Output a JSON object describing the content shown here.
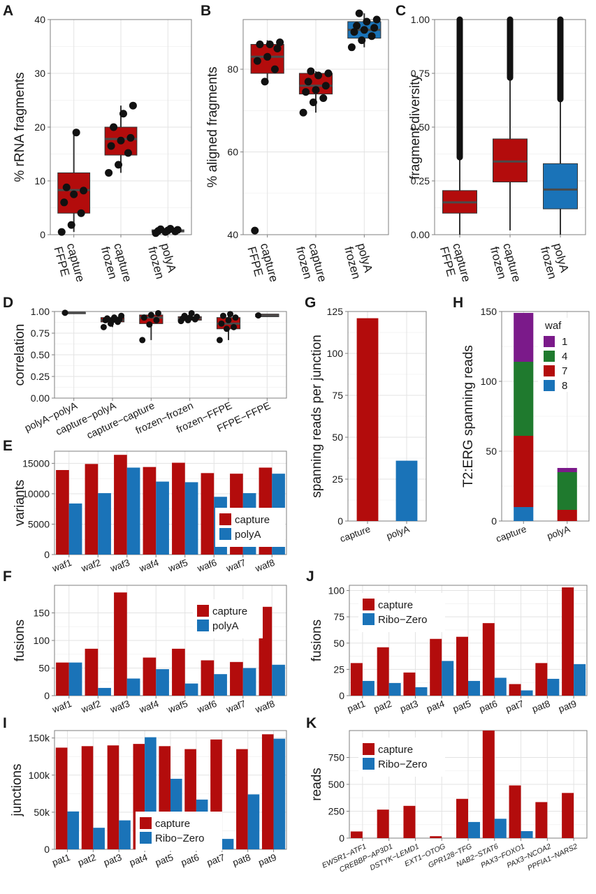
{
  "colors": {
    "capture": "#b30c0c",
    "polyA": "#1a73b8",
    "riboZero": "#1a73b8",
    "waf1": "#7b1a8a",
    "waf4": "#1f7a2e",
    "waf7": "#b30c0c",
    "waf8": "#1a73b8",
    "median": "#4a4a4a",
    "point": "#111111"
  },
  "chart_data": [
    {
      "id": "A",
      "panel_label": "A",
      "type": "box",
      "ylabel": "% rRNA fragments",
      "ylim": [
        0,
        40
      ],
      "yticks": [
        0,
        10,
        20,
        30,
        40
      ],
      "tick_labels": [
        "0",
        "10",
        "20",
        "30",
        "40"
      ],
      "categories": [
        "capture\nFFPE",
        "capture\nfrozen",
        "polyA\nfrozen"
      ],
      "boxes": [
        {
          "color": "capture",
          "q1": 4,
          "median": 8.3,
          "q3": 11.5,
          "whisker_low": 0.5,
          "whisker_high": 19,
          "points": [
            0.5,
            1.8,
            4,
            6,
            7.5,
            8.2,
            8.8,
            19
          ]
        },
        {
          "color": "capture",
          "q1": 14.8,
          "median": 17.8,
          "q3": 20,
          "whisker_low": 11.5,
          "whisker_high": 24,
          "points": [
            11.5,
            13,
            15.2,
            16.5,
            17.5,
            18,
            20,
            22.5,
            24
          ]
        },
        {
          "color": "capture",
          "q1": 0.5,
          "median": 0.7,
          "q3": 0.9,
          "whisker_low": 0.3,
          "whisker_high": 1.1,
          "points": [
            0.3,
            0.5,
            0.6,
            0.7,
            0.8,
            0.9,
            1.0,
            1.1
          ]
        }
      ]
    },
    {
      "id": "B",
      "panel_label": "B",
      "type": "box",
      "ylabel": "% aligned fragments",
      "ylim": [
        40,
        92
      ],
      "yticks": [
        40,
        60,
        80
      ],
      "tick_labels": [
        "40",
        "60",
        "80"
      ],
      "categories": [
        "capture\nFFPE",
        "capture\nfrozen",
        "polyA\nfrozen"
      ],
      "boxes": [
        {
          "color": "capture",
          "q1": 79,
          "median": 83,
          "q3": 86,
          "whisker_low": 76.5,
          "whisker_high": 87,
          "points": [
            41,
            77,
            80,
            82,
            83,
            85,
            86,
            86,
            86.5
          ]
        },
        {
          "color": "capture",
          "q1": 74,
          "median": 76,
          "q3": 79,
          "whisker_low": 69.5,
          "whisker_high": 79.5,
          "points": [
            69.5,
            72,
            73,
            74.5,
            75,
            76,
            77,
            78.5,
            79,
            79.5
          ]
        },
        {
          "color": "polyA",
          "q1": 87.5,
          "median": 89.5,
          "q3": 91.5,
          "whisker_low": 85.3,
          "whisker_high": 93.5,
          "points": [
            85.3,
            87,
            88,
            89,
            89.5,
            90,
            90.5,
            91.5,
            92,
            93.5
          ]
        }
      ]
    },
    {
      "id": "C",
      "panel_label": "C",
      "type": "box",
      "ylabel": "fragment diversity",
      "ylim": [
        0,
        1.0
      ],
      "yticks": [
        0,
        0.25,
        0.5,
        0.75,
        1.0
      ],
      "tick_labels": [
        "0.00",
        "0.25",
        "0.50",
        "0.75",
        "1.00"
      ],
      "categories": [
        "capture\nFFPE",
        "capture\nfrozen",
        "polyA\nfrozen"
      ],
      "boxes": [
        {
          "color": "capture",
          "q1": 0.1,
          "median": 0.15,
          "q3": 0.205,
          "whisker_low": 0.0,
          "whisker_high": 0.36,
          "outliers_from": 0.36,
          "outliers_to": 1.0,
          "points": []
        },
        {
          "color": "capture",
          "q1": 0.245,
          "median": 0.34,
          "q3": 0.445,
          "whisker_low": 0.02,
          "whisker_high": 0.73,
          "outliers_from": 0.73,
          "outliers_to": 1.0,
          "points": []
        },
        {
          "color": "polyA",
          "q1": 0.12,
          "median": 0.21,
          "q3": 0.33,
          "whisker_low": 0.0,
          "whisker_high": 0.63,
          "outliers_from": 0.63,
          "outliers_to": 1.0,
          "points": []
        }
      ]
    },
    {
      "id": "D",
      "panel_label": "D",
      "type": "box",
      "ylabel": "correlation",
      "ylim": [
        0,
        1.0
      ],
      "yticks": [
        0,
        0.25,
        0.5,
        0.75,
        1.0
      ],
      "tick_labels": [
        "0.00",
        "0.25",
        "0.50",
        "0.75",
        "1.00"
      ],
      "categories": [
        "polyA−polyA",
        "capture−polyA",
        "capture−capture",
        "frozen−frozen",
        "frozen−FFPE",
        "FFPE−FFPE"
      ],
      "boxes": [
        {
          "color": "capture",
          "q1": 0.98,
          "median": 0.985,
          "q3": 0.99,
          "whisker_low": 0.98,
          "whisker_high": 0.99,
          "points": [
            0.985
          ]
        },
        {
          "color": "capture",
          "q1": 0.88,
          "median": 0.9,
          "q3": 0.93,
          "whisker_low": 0.82,
          "whisker_high": 0.95,
          "points": [
            0.82,
            0.86,
            0.88,
            0.9,
            0.9,
            0.91,
            0.92,
            0.93,
            0.95
          ]
        },
        {
          "color": "capture",
          "q1": 0.86,
          "median": 0.93,
          "q3": 0.96,
          "whisker_low": 0.67,
          "whisker_high": 0.98,
          "points": [
            0.67,
            0.85,
            0.9,
            0.93,
            0.96,
            0.98
          ]
        },
        {
          "color": "capture",
          "q1": 0.9,
          "median": 0.92,
          "q3": 0.94,
          "whisker_low": 0.89,
          "whisker_high": 0.98,
          "points": [
            0.89,
            0.9,
            0.91,
            0.92,
            0.93,
            0.94,
            0.95,
            0.98
          ]
        },
        {
          "color": "capture",
          "q1": 0.8,
          "median": 0.86,
          "q3": 0.93,
          "whisker_low": 0.67,
          "whisker_high": 0.97,
          "points": [
            0.67,
            0.8,
            0.82,
            0.86,
            0.9,
            0.93,
            0.95,
            0.97
          ]
        },
        {
          "color": "capture",
          "q1": 0.94,
          "median": 0.955,
          "q3": 0.97,
          "whisker_low": 0.94,
          "whisker_high": 0.97,
          "points": [
            0.955
          ]
        }
      ]
    },
    {
      "id": "E",
      "panel_label": "E",
      "type": "bar",
      "ylabel": "variants",
      "ylim": [
        0,
        17000
      ],
      "yticks": [
        0,
        5000,
        10000,
        15000
      ],
      "tick_labels": [
        "0",
        "5000",
        "10000",
        "15000"
      ],
      "categories": [
        "waf1",
        "waf2",
        "waf3",
        "waf4",
        "waf5",
        "waf6",
        "waf7",
        "waf8"
      ],
      "series": [
        {
          "name": "capture",
          "color": "capture",
          "values": [
            13900,
            14900,
            16400,
            14400,
            15100,
            13400,
            13300,
            14300
          ]
        },
        {
          "name": "polyA",
          "color": "polyA",
          "values": [
            8400,
            10100,
            14300,
            12000,
            11900,
            9500,
            10100,
            13300
          ]
        }
      ]
    },
    {
      "id": "F",
      "panel_label": "F",
      "type": "bar",
      "ylabel": "fusions",
      "ylim": [
        0,
        200
      ],
      "yticks": [
        0,
        50,
        100,
        150
      ],
      "tick_labels": [
        "0",
        "50",
        "100",
        "150"
      ],
      "categories": [
        "waf1",
        "waf2",
        "waf3",
        "waf4",
        "waf5",
        "waf6",
        "waf7",
        "waf8"
      ],
      "series": [
        {
          "name": "capture",
          "color": "capture",
          "values": [
            60,
            85,
            187,
            69,
            85,
            64,
            61,
            161
          ]
        },
        {
          "name": "polyA",
          "color": "polyA",
          "values": [
            60,
            14,
            31,
            48,
            22,
            39,
            50,
            56
          ]
        }
      ]
    },
    {
      "id": "G",
      "panel_label": "G",
      "type": "bar",
      "ylabel": "spanning reads per junction",
      "ylim": [
        0,
        125
      ],
      "yticks": [
        0,
        25,
        50,
        75,
        100,
        125
      ],
      "tick_labels": [
        "0",
        "25",
        "50",
        "75",
        "100",
        "125"
      ],
      "categories": [
        "capture",
        "polyA"
      ],
      "series": [
        {
          "name": "value",
          "values": [
            121,
            36
          ],
          "colors": [
            "capture",
            "polyA"
          ]
        }
      ]
    },
    {
      "id": "H",
      "panel_label": "H",
      "type": "stacked_bar",
      "ylabel": "T2:ERG spanning reads",
      "ylim": [
        0,
        150
      ],
      "yticks": [
        0,
        50,
        100,
        150
      ],
      "tick_labels": [
        "0",
        "50",
        "100",
        "150"
      ],
      "categories": [
        "capture",
        "polyA"
      ],
      "legend_title": "waf",
      "series": [
        {
          "name": "8",
          "color": "waf8",
          "values": [
            10,
            0
          ]
        },
        {
          "name": "7",
          "color": "waf7",
          "values": [
            51,
            8
          ]
        },
        {
          "name": "4",
          "color": "waf4",
          "values": [
            53,
            27
          ]
        },
        {
          "name": "1",
          "color": "waf1",
          "values": [
            35,
            3
          ]
        }
      ],
      "legend_order": [
        "1",
        "4",
        "7",
        "8"
      ]
    },
    {
      "id": "I",
      "panel_label": "I",
      "type": "bar",
      "ylabel": "junctions",
      "ylim": [
        0,
        160000
      ],
      "yticks": [
        0,
        50000,
        100000,
        150000
      ],
      "tick_labels": [
        "0",
        "50k",
        "100k",
        "150k"
      ],
      "categories": [
        "pat1",
        "pat2",
        "pat3",
        "pat4",
        "pat5",
        "pat6",
        "pat7",
        "pat8",
        "pat9"
      ],
      "series": [
        {
          "name": "capture",
          "color": "capture",
          "values": [
            137000,
            139000,
            140000,
            142000,
            139000,
            135000,
            148000,
            135000,
            155000
          ]
        },
        {
          "name": "Ribo−Zero",
          "color": "riboZero",
          "values": [
            51000,
            29000,
            39000,
            151000,
            95000,
            67000,
            14000,
            74000,
            149000
          ]
        }
      ]
    },
    {
      "id": "J",
      "panel_label": "J",
      "type": "bar",
      "ylabel": "fusions",
      "ylim": [
        0,
        105
      ],
      "yticks": [
        0,
        25,
        50,
        75,
        100
      ],
      "tick_labels": [
        "0",
        "25",
        "50",
        "75",
        "100"
      ],
      "categories": [
        "pat1",
        "pat2",
        "pat3",
        "pat4",
        "pat5",
        "pat6",
        "pat7",
        "pat8",
        "pat9"
      ],
      "series": [
        {
          "name": "capture",
          "color": "capture",
          "values": [
            31,
            46,
            22,
            54,
            56,
            69,
            11,
            31,
            103
          ]
        },
        {
          "name": "Ribo−Zero",
          "color": "riboZero",
          "values": [
            14,
            12,
            8,
            33,
            14,
            17,
            5,
            16,
            30
          ]
        }
      ]
    },
    {
      "id": "K",
      "panel_label": "K",
      "type": "bar",
      "ylabel": "reads",
      "ylim": [
        0,
        1000
      ],
      "yticks": [
        0,
        250,
        500,
        750
      ],
      "tick_labels": [
        "0",
        "250",
        "500",
        "750"
      ],
      "categories": [
        "EWSR1−ATF1",
        "CREBBP−AP3D1",
        "DSTYK−LEMD1",
        "EXT1−OTOG",
        "GPR128−TFG",
        "NAB2−STAT6",
        "PAX3−FOXO1",
        "PAX3−NCOA2",
        "PPFIA1−NARS2"
      ],
      "series": [
        {
          "name": "capture",
          "color": "capture",
          "values": [
            62,
            265,
            300,
            18,
            365,
            1000,
            490,
            335,
            420
          ]
        },
        {
          "name": "Ribo−Zero",
          "color": "riboZero",
          "values": [
            0,
            0,
            0,
            0,
            150,
            180,
            65,
            0,
            0
          ]
        }
      ]
    }
  ]
}
